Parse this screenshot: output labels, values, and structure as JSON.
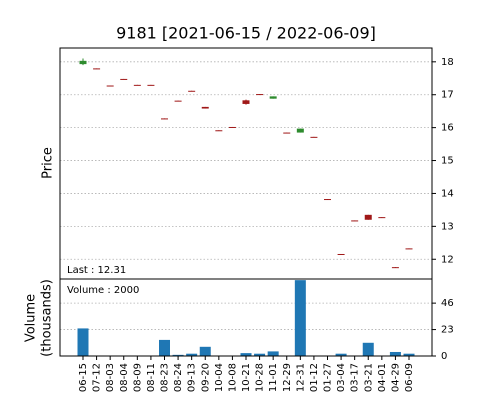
{
  "chart_data": {
    "type": "candlestick",
    "title": "9181   [2021-06-15 / 2022-06-09]",
    "ylabel": "Price",
    "volume_ylabel": [
      "Volume",
      "(thousands)"
    ],
    "last_text": "Last : 12.31",
    "volume_text": "Volume : 2000",
    "categories": [
      "06-15",
      "07-12",
      "08-03",
      "08-04",
      "08-09",
      "08-11",
      "08-23",
      "08-24",
      "09-13",
      "09-20",
      "10-04",
      "10-08",
      "10-21",
      "10-28",
      "11-01",
      "12-29",
      "12-31",
      "01-12",
      "01-27",
      "03-04",
      "03-17",
      "03-21",
      "04-01",
      "04-29",
      "06-09"
    ],
    "open": [
      17.93,
      17.8,
      17.28,
      17.48,
      17.3,
      17.3,
      16.28,
      16.82,
      17.12,
      16.63,
      15.92,
      16.02,
      16.83,
      17.02,
      16.88,
      15.85,
      15.85,
      15.72,
      13.83,
      12.16,
      13.18,
      13.35,
      13.28,
      11.76,
      12.33
    ],
    "high": [
      18.1,
      17.8,
      17.28,
      17.48,
      17.3,
      17.3,
      16.28,
      16.82,
      17.12,
      16.63,
      15.92,
      16.02,
      16.85,
      17.02,
      16.95,
      15.85,
      15.97,
      15.72,
      13.83,
      12.16,
      13.18,
      13.35,
      13.28,
      11.76,
      12.33
    ],
    "low": [
      17.9,
      17.78,
      17.26,
      17.46,
      17.28,
      17.28,
      16.26,
      16.8,
      17.1,
      16.58,
      15.9,
      16.0,
      16.7,
      17.0,
      16.88,
      15.83,
      15.85,
      15.7,
      13.81,
      12.14,
      13.16,
      13.2,
      13.26,
      11.74,
      12.31
    ],
    "close": [
      18.03,
      17.78,
      17.26,
      17.46,
      17.28,
      17.28,
      16.26,
      16.8,
      17.1,
      16.58,
      15.9,
      16.0,
      16.72,
      17.0,
      16.95,
      15.83,
      15.97,
      15.7,
      13.81,
      12.14,
      13.16,
      13.2,
      13.26,
      11.74,
      12.31
    ],
    "volume": [
      24,
      0,
      0,
      0,
      0,
      0,
      14,
      1,
      2,
      8,
      0,
      0,
      2.5,
      2,
      4,
      0,
      66,
      0,
      0,
      2,
      0,
      11.5,
      0,
      3.5,
      2
    ],
    "up_color": "#2e8b2e",
    "down_color": "#a01818",
    "volume_color": "#1f77b4",
    "ylim": [
      11.4,
      18.42
    ],
    "yticks": [
      12,
      13,
      14,
      15,
      16,
      17,
      18
    ],
    "volume_ylim": [
      0,
      67
    ],
    "volume_yticks": [
      0,
      23,
      46
    ],
    "grid": true
  }
}
